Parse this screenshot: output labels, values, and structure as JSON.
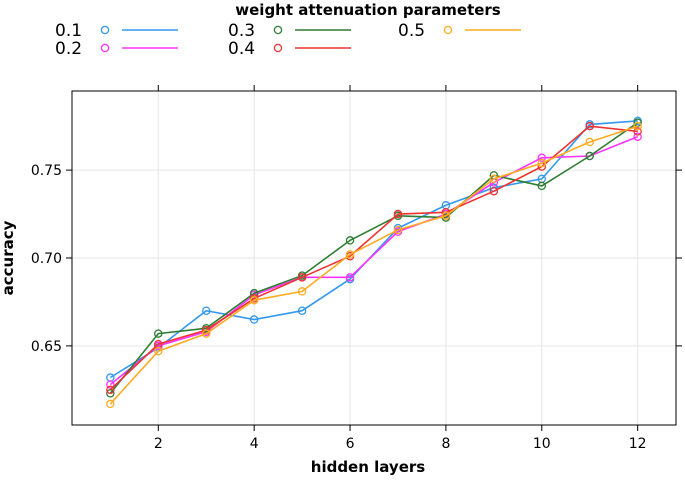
{
  "chart_data": {
    "type": "line",
    "title": "",
    "legend_title": "weight attenuation parameters",
    "legend_position": "top",
    "xlabel": "hidden layers",
    "ylabel": "accuracy",
    "xlim": [
      0.2,
      12.8
    ],
    "ylim": [
      0.605,
      0.795
    ],
    "xticks": [
      2,
      4,
      6,
      8,
      10,
      12
    ],
    "xtick_labels": [
      "2",
      "4",
      "6",
      "8",
      "10",
      "12"
    ],
    "yticks": [
      0.65,
      0.7,
      0.75
    ],
    "ytick_labels": [
      "0.65",
      "0.70",
      "0.75"
    ],
    "grid": true,
    "x": [
      1,
      2,
      3,
      4,
      5,
      6,
      7,
      8,
      9,
      10,
      11,
      12
    ],
    "series": [
      {
        "name": "0.1",
        "color": "#3399ee",
        "values": [
          0.632,
          0.649,
          0.67,
          0.665,
          0.67,
          0.688,
          0.717,
          0.73,
          0.74,
          0.745,
          0.776,
          0.778
        ]
      },
      {
        "name": "0.2",
        "color": "#ff33ff",
        "values": [
          0.628,
          0.65,
          0.658,
          0.679,
          0.689,
          0.689,
          0.715,
          0.725,
          0.743,
          0.757,
          0.758,
          0.769
        ]
      },
      {
        "name": "0.3",
        "color": "#2e7d32",
        "values": [
          0.623,
          0.657,
          0.66,
          0.68,
          0.69,
          0.71,
          0.724,
          0.723,
          0.747,
          0.741,
          0.758,
          0.777
        ]
      },
      {
        "name": "0.4",
        "color": "#ee3333",
        "values": [
          0.625,
          0.651,
          0.659,
          0.677,
          0.689,
          0.701,
          0.725,
          0.726,
          0.738,
          0.752,
          0.775,
          0.772
        ]
      },
      {
        "name": "0.5",
        "color": "#ffaa22",
        "values": [
          0.617,
          0.647,
          0.657,
          0.676,
          0.681,
          0.702,
          0.716,
          0.724,
          0.745,
          0.754,
          0.766,
          0.775
        ]
      }
    ]
  }
}
